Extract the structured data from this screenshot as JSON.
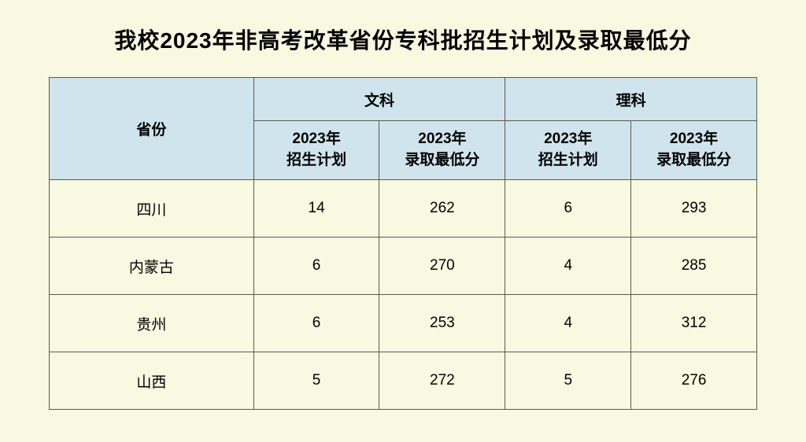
{
  "title": "我校2023年非高考改革省份专科批招生计划及录取最低分",
  "table": {
    "type": "table",
    "header": {
      "province": "省份",
      "category_liberal": "文科",
      "category_science": "理科",
      "sub_plan": "2023年",
      "sub_plan2": "招生计划",
      "sub_score": "2023年",
      "sub_score2": "录取最低分"
    },
    "rows": [
      {
        "province": "四川",
        "liberal_plan": "14",
        "liberal_score": "262",
        "science_plan": "6",
        "science_score": "293"
      },
      {
        "province": "内蒙古",
        "liberal_plan": "6",
        "liberal_score": "270",
        "science_plan": "4",
        "science_score": "285"
      },
      {
        "province": "贵州",
        "liberal_plan": "6",
        "liberal_score": "253",
        "science_plan": "4",
        "science_score": "312"
      },
      {
        "province": "山西",
        "liberal_plan": "5",
        "liberal_score": "272",
        "science_plan": "5",
        "science_score": "276"
      }
    ],
    "colors": {
      "background": "#f9f9e2",
      "header_bg": "#d0e4ed",
      "border": "#5a5a4a",
      "text": "#000000"
    },
    "title_fontsize": 28,
    "header_fontsize": 19,
    "subheader_fontsize": 17,
    "cell_fontsize": 19
  }
}
